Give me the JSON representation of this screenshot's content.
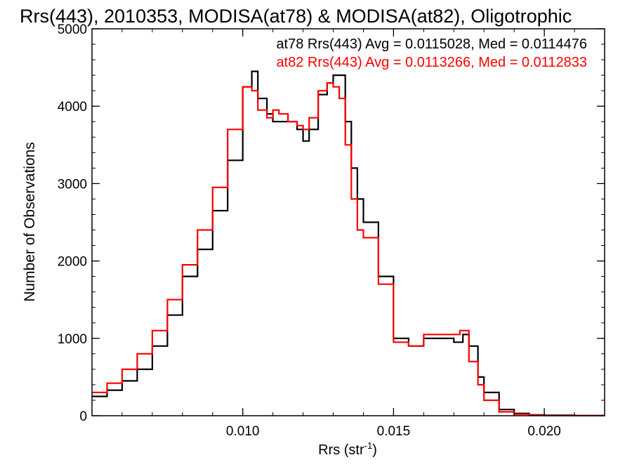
{
  "chart_data": {
    "type": "line",
    "title": "Rrs(443), 2010353, MODISA(at78) & MODISA(at82), Oligotrophic",
    "xlabel": "Rrs (str",
    "xlabel_sup": "-1",
    "xlabel_close": ")",
    "ylabel": "Number of Observations",
    "xlim": [
      0.005,
      0.022
    ],
    "ylim": [
      0,
      5000
    ],
    "x_ticks": [
      0.01,
      0.015,
      0.02
    ],
    "x_tick_labels": [
      "0.010",
      "0.015",
      "0.020"
    ],
    "y_ticks": [
      0,
      1000,
      2000,
      3000,
      4000,
      5000
    ],
    "y_tick_labels": [
      "0",
      "1000",
      "2000",
      "3000",
      "4000",
      "5000"
    ],
    "grid": false,
    "legend": [
      {
        "text": "at78 Rrs(443) Avg = 0.0115028, Med = 0.0114476",
        "color": "#000000"
      },
      {
        "text": "at82 Rrs(443) Avg = 0.0113266, Med = 0.0112833",
        "color": "#ff0000"
      }
    ],
    "series": [
      {
        "name": "at78",
        "color": "#000000",
        "x": [
          0.005,
          0.0055,
          0.006,
          0.0065,
          0.007,
          0.0075,
          0.008,
          0.0085,
          0.009,
          0.0095,
          0.01,
          0.0103,
          0.0105,
          0.0108,
          0.011,
          0.0112,
          0.0115,
          0.0118,
          0.012,
          0.0122,
          0.0125,
          0.0128,
          0.013,
          0.0132,
          0.0134,
          0.0136,
          0.0138,
          0.014,
          0.0145,
          0.015,
          0.0155,
          0.016,
          0.0165,
          0.017,
          0.0173,
          0.0175,
          0.0178,
          0.018,
          0.0185,
          0.019,
          0.0195,
          0.02,
          0.021,
          0.022
        ],
        "y": [
          250,
          330,
          450,
          600,
          900,
          1300,
          1800,
          2150,
          2650,
          3300,
          4250,
          4450,
          4100,
          3900,
          3800,
          3800,
          3800,
          3700,
          3550,
          3700,
          4150,
          4300,
          4400,
          4400,
          3800,
          3200,
          2800,
          2500,
          1800,
          1000,
          900,
          1000,
          1000,
          950,
          1050,
          900,
          500,
          300,
          80,
          30,
          10,
          5,
          2,
          0
        ]
      },
      {
        "name": "at82",
        "color": "#ff0000",
        "x": [
          0.005,
          0.0055,
          0.006,
          0.0065,
          0.007,
          0.0075,
          0.008,
          0.0085,
          0.009,
          0.0095,
          0.01,
          0.0103,
          0.0105,
          0.0108,
          0.011,
          0.0112,
          0.0115,
          0.0118,
          0.012,
          0.0122,
          0.0125,
          0.0128,
          0.013,
          0.0132,
          0.0134,
          0.0136,
          0.0138,
          0.014,
          0.0145,
          0.015,
          0.0155,
          0.016,
          0.0165,
          0.017,
          0.0172,
          0.0175,
          0.0178,
          0.018,
          0.0185,
          0.019,
          0.0195,
          0.02,
          0.021,
          0.022
        ],
        "y": [
          300,
          420,
          600,
          800,
          1100,
          1500,
          1950,
          2400,
          2950,
          3700,
          4250,
          4200,
          3950,
          3850,
          3950,
          3900,
          3800,
          3750,
          3700,
          3850,
          4200,
          4300,
          4250,
          4100,
          3500,
          2800,
          2400,
          2300,
          1700,
          950,
          900,
          1050,
          1050,
          1050,
          1100,
          700,
          400,
          200,
          50,
          20,
          5,
          2,
          1,
          0
        ]
      }
    ]
  }
}
